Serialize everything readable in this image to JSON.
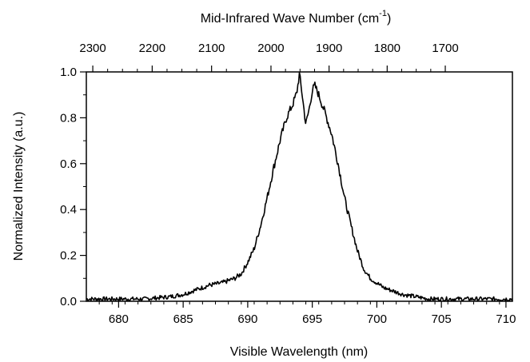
{
  "chart_data": {
    "type": "line",
    "xlabel": "Visible Wavelength (nm)",
    "ylabel": "Normalized Intensity (a.u.)",
    "x2label_main": "Mid-Infrared Wave Number (cm",
    "x2label_sup": "-1",
    "x2label_close": ")",
    "xlim": [
      677.5,
      710.5
    ],
    "ylim": [
      0.0,
      1.0
    ],
    "x_ticks": [
      "680",
      "685",
      "690",
      "695",
      "700",
      "705",
      "710"
    ],
    "y_ticks": [
      "0.0",
      "0.2",
      "0.4",
      "0.6",
      "0.8",
      "1.0"
    ],
    "x2_ticks": [
      "2300",
      "2200",
      "2100",
      "2000",
      "1900",
      "1800",
      "1700"
    ],
    "x2_tick_positions_nm": [
      678.0,
      682.6,
      687.2,
      691.8,
      696.3,
      700.8,
      705.3
    ],
    "grid": false,
    "legend": "none",
    "line_color": "#000000",
    "series": [
      {
        "x": [
          677.5,
          680,
          682,
          684,
          685,
          686,
          687,
          688,
          689,
          689.5,
          690,
          690.5,
          691,
          691.5,
          692,
          692.5,
          693,
          693.5,
          693.8,
          694.0,
          694.2,
          694.5,
          694.8,
          695.0,
          695.2,
          695.5,
          696,
          696.5,
          697,
          697.5,
          698,
          698.5,
          699,
          699.5,
          700,
          700.5,
          701,
          702,
          703,
          704,
          706,
          708,
          710.5
        ],
        "y": [
          0.01,
          0.01,
          0.01,
          0.02,
          0.03,
          0.05,
          0.07,
          0.08,
          0.1,
          0.12,
          0.17,
          0.23,
          0.33,
          0.45,
          0.58,
          0.7,
          0.8,
          0.86,
          0.91,
          0.99,
          0.91,
          0.77,
          0.85,
          0.92,
          0.94,
          0.9,
          0.82,
          0.73,
          0.6,
          0.45,
          0.33,
          0.22,
          0.14,
          0.1,
          0.08,
          0.06,
          0.05,
          0.03,
          0.02,
          0.01,
          0.01,
          0.01,
          0.01
        ]
      }
    ]
  }
}
